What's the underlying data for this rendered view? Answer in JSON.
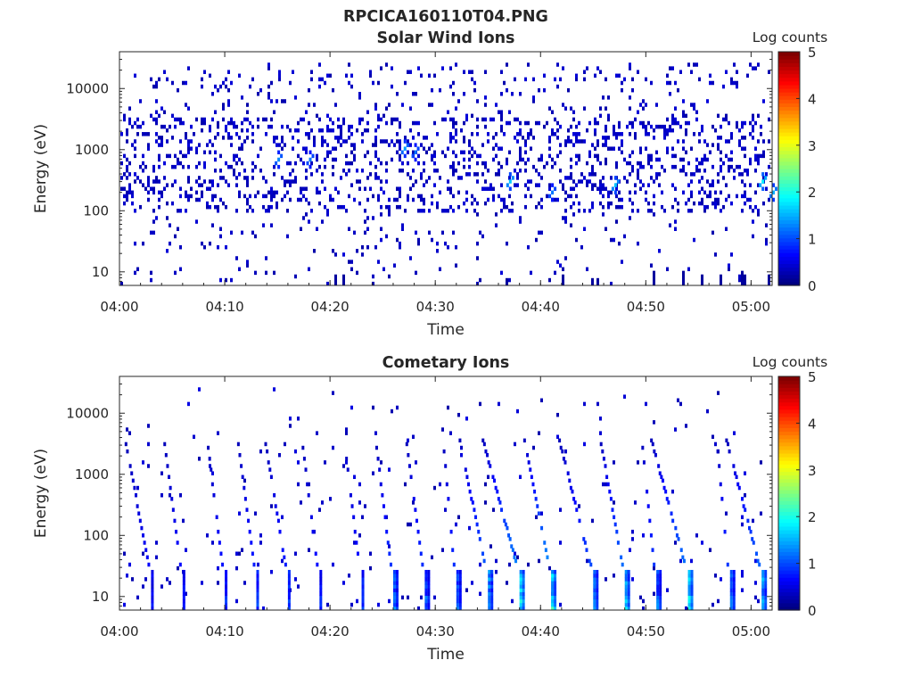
{
  "figure": {
    "title": "RPCICA160110T04.PNG"
  },
  "chart_data": [
    {
      "type": "heatmap",
      "title": "Solar Wind Ions",
      "xlabel": "Time",
      "ylabel": "Energy (eV)",
      "y_scale": "log",
      "x_range": [
        "04:00",
        "05:02"
      ],
      "y_range": [
        6,
        40000
      ],
      "x_ticks": [
        "04:00",
        "04:10",
        "04:20",
        "04:30",
        "04:40",
        "04:50",
        "05:00"
      ],
      "y_ticks": [
        "10",
        "100",
        "1000",
        "10000"
      ],
      "colorbar": {
        "label": "Log counts",
        "min": 0,
        "max": 5,
        "ticks": [
          "0",
          "1",
          "2",
          "3",
          "4",
          "5"
        ],
        "colormap": "jet"
      },
      "dominant_energy_band_eV": [
        100,
        3000
      ],
      "typical_log_counts": 0.2,
      "enhancements": [
        {
          "time": "04:15",
          "energy_eV": 700,
          "log_counts": 1.3
        },
        {
          "time": "04:18",
          "energy_eV": 650,
          "log_counts": 1.2
        },
        {
          "time": "04:27",
          "energy_eV": 1000,
          "log_counts": 1.4
        },
        {
          "time": "04:28",
          "energy_eV": 850,
          "log_counts": 1.2
        },
        {
          "time": "04:37",
          "energy_eV": 300,
          "log_counts": 1.6
        },
        {
          "time": "04:41",
          "energy_eV": 200,
          "log_counts": 1.2
        },
        {
          "time": "04:47",
          "energy_eV": 250,
          "log_counts": 1.6
        },
        {
          "time": "05:01",
          "energy_eV": 300,
          "log_counts": 1.8
        },
        {
          "time": "05:02",
          "energy_eV": 200,
          "log_counts": 1.5
        }
      ]
    },
    {
      "type": "heatmap",
      "title": "Cometary Ions",
      "xlabel": "Time",
      "ylabel": "Energy (eV)",
      "y_scale": "log",
      "x_range": [
        "04:00",
        "05:02"
      ],
      "y_range": [
        6,
        40000
      ],
      "x_ticks": [
        "04:00",
        "04:10",
        "04:20",
        "04:30",
        "04:40",
        "04:50",
        "05:00"
      ],
      "y_ticks": [
        "10",
        "100",
        "1000",
        "10000"
      ],
      "colorbar": {
        "label": "Log counts",
        "min": 0,
        "max": 5,
        "ticks": [
          "0",
          "1",
          "2",
          "3",
          "4",
          "5"
        ],
        "colormap": "jet"
      },
      "low_energy_bursts": [
        {
          "time": "04:03",
          "log_counts": 0.8
        },
        {
          "time": "04:06",
          "log_counts": 0.9
        },
        {
          "time": "04:10",
          "log_counts": 1.0
        },
        {
          "time": "04:13",
          "log_counts": 1.1
        },
        {
          "time": "04:16",
          "log_counts": 1.1
        },
        {
          "time": "04:19",
          "log_counts": 0.9
        },
        {
          "time": "04:23",
          "log_counts": 1.0
        },
        {
          "time": "04:26",
          "log_counts": 1.4
        },
        {
          "time": "04:29",
          "log_counts": 1.3
        },
        {
          "time": "04:32",
          "log_counts": 1.3
        },
        {
          "time": "04:35",
          "log_counts": 1.8
        },
        {
          "time": "04:38",
          "log_counts": 2.3
        },
        {
          "time": "04:41",
          "log_counts": 2.4
        },
        {
          "time": "04:45",
          "log_counts": 1.6
        },
        {
          "time": "04:48",
          "log_counts": 2.0
        },
        {
          "time": "04:51",
          "log_counts": 1.4
        },
        {
          "time": "04:54",
          "log_counts": 2.1
        },
        {
          "time": "04:58",
          "log_counts": 1.4
        },
        {
          "time": "05:01",
          "log_counts": 1.9
        }
      ],
      "burst_energy_range_eV": [
        6,
        25
      ],
      "dispersion_tracks_max_energy_eV": 5000
    }
  ]
}
